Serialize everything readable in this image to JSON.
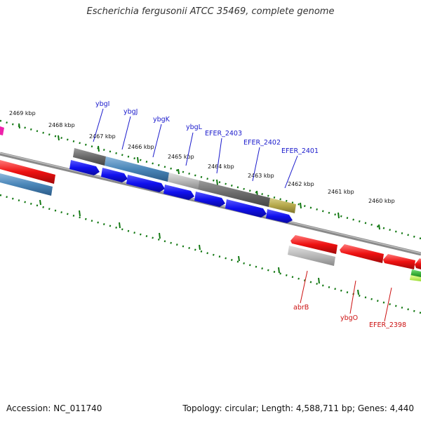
{
  "title": "Escherichia fergusonii ATCC 35469, complete genome",
  "accession": "Accession: NC_011740",
  "summary": "Topology: circular; Length: 4,588,711 bp; Genes: 4,440",
  "kbp_labels": [
    "2469 kbp",
    "2468 kbp",
    "2467 kbp",
    "2466 kbp",
    "2465 kbp",
    "2464 kbp",
    "2463 kbp",
    "2462 kbp",
    "2461 kbp",
    "2460 kbp"
  ],
  "gene_labels_top": [
    "ybgI",
    "ybgJ",
    "ybgK",
    "ybgL",
    "EFER_2403",
    "EFER_2402",
    "EFER_2401"
  ],
  "gene_labels_bottom": [
    "abrB",
    "ybgO",
    "EFER_2398"
  ],
  "colors": {
    "blue_label": "#1a1acc",
    "red_label": "#cc1111",
    "tick_green": "#117711",
    "cds_blue": "#1111ee",
    "cds_red": "#ee1111",
    "steel_blue": "#4a86b8",
    "dark_gray": "#6a6a6a",
    "light_gray": "#b8b8b8",
    "olive": "#b5a84a",
    "magenta": "#ee22aa",
    "green": "#33aa33"
  }
}
